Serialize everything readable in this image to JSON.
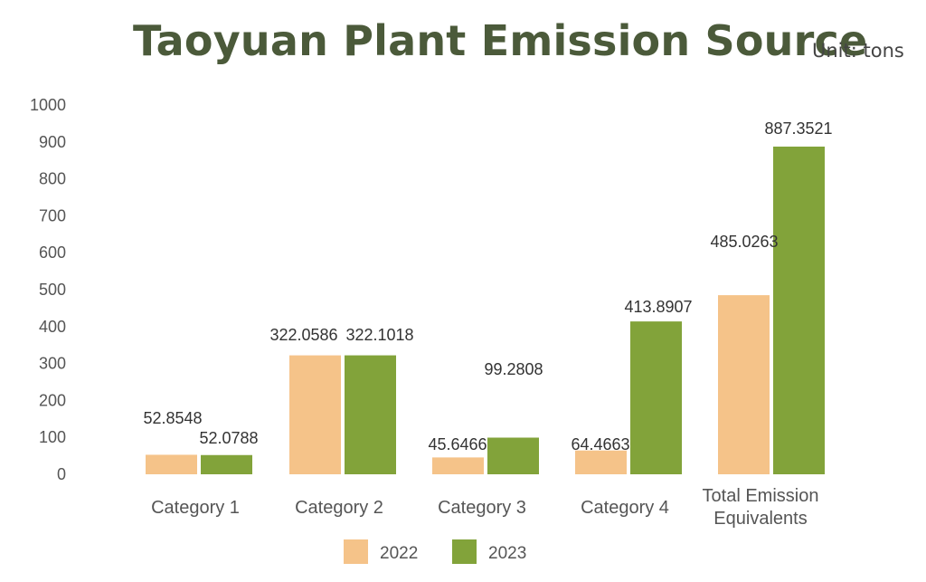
{
  "title": "Taoyuan Plant Emission Source",
  "unit_label": "Unit: tons",
  "colors": {
    "2022": "#f5c389",
    "2023": "#82a33a"
  },
  "chart_data": {
    "type": "bar",
    "title": "Taoyuan Plant Emission Source",
    "categories": [
      [
        "Category 1"
      ],
      [
        "Category 2"
      ],
      [
        "Category 3"
      ],
      [
        "Category 4"
      ],
      [
        "Total Emission",
        "Equivalents"
      ]
    ],
    "series": [
      {
        "name": "2022",
        "values": [
          52.8548,
          322.0586,
          45.6466,
          64.4663,
          485.0263
        ],
        "labels": [
          "52.8548",
          "322.0586",
          "45.6466",
          "64.4663",
          "485.0263"
        ]
      },
      {
        "name": "2023",
        "values": [
          52.0788,
          322.1018,
          99.2808,
          413.8907,
          887.3521
        ],
        "labels": [
          "52.0788",
          "322.1018",
          "99.2808",
          "413.8907",
          "887.3521"
        ]
      }
    ],
    "ylim": [
      0,
      1000
    ],
    "yticks": [
      "0",
      "100",
      "200",
      "300",
      "400",
      "500",
      "600",
      "700",
      "800",
      "900",
      "1000"
    ],
    "grid": false,
    "legend": "bottom"
  }
}
